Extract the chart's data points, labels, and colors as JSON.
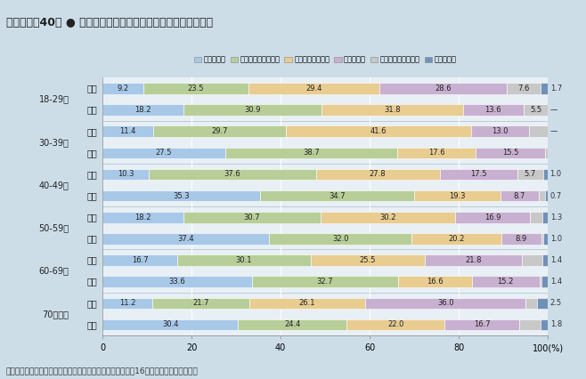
{
  "title": "第１－序－40図 ● 科学技術についてのニュースや話題への関心",
  "footnote": "（備考）内閣府「科学技術と社会に関する世論調査」（平成16年２月調査）より作成。",
  "legend_labels": [
    "関心がある",
    "ある程度関心がある",
    "あまり関心がない",
    "関心がない",
    "どちらともいえない",
    "わからない"
  ],
  "colors": [
    "#a8c8e8",
    "#b8ce98",
    "#e8cc90",
    "#c8b0d0",
    "#c8c8c8",
    "#7090b8"
  ],
  "categories": [
    "18-29歳 女性",
    "18-29歳 男性",
    "30-39歳 女性",
    "30-39歳 男性",
    "40-49歳 女性",
    "40-49歳 男性",
    "50-59歳 女性",
    "50-59歳 男性",
    "60-69歳 女性",
    "60-69歳 男性",
    "70歳以上 女性",
    "70歳以上 男性"
  ],
  "age_labels": [
    "18-29歳",
    "30-39歳",
    "40-49歳",
    "50-59歳",
    "60-69歳",
    "70歳以上"
  ],
  "gender_labels_row": [
    "女性",
    "男性",
    "女性",
    "男性",
    "女性",
    "男性",
    "女性",
    "男性",
    "女性",
    "男性",
    "女性",
    "男性"
  ],
  "data": [
    [
      9.2,
      23.5,
      29.4,
      28.6,
      7.6,
      1.7
    ],
    [
      18.2,
      30.9,
      31.8,
      13.6,
      5.5,
      0.0
    ],
    [
      11.4,
      29.7,
      41.6,
      13.0,
      4.3,
      0.0
    ],
    [
      27.5,
      38.7,
      17.6,
      15.5,
      0.7,
      0.0
    ],
    [
      10.3,
      37.6,
      27.8,
      17.5,
      5.7,
      1.0
    ],
    [
      35.3,
      34.7,
      19.3,
      8.7,
      1.3,
      0.7
    ],
    [
      18.2,
      30.7,
      30.2,
      16.9,
      2.7,
      1.3
    ],
    [
      37.4,
      32.0,
      20.2,
      8.9,
      0.5,
      1.0
    ],
    [
      16.7,
      30.1,
      25.5,
      21.8,
      4.6,
      1.4
    ],
    [
      33.6,
      32.7,
      16.6,
      15.2,
      0.5,
      1.4
    ],
    [
      11.2,
      21.7,
      26.1,
      36.0,
      2.5,
      2.5
    ],
    [
      30.4,
      24.4,
      22.0,
      16.7,
      4.8,
      1.8
    ]
  ],
  "bar_labels": [
    [
      "9.2",
      "23.5",
      "29.4",
      "28.6",
      "7.6",
      "1.7"
    ],
    [
      "18.2",
      "30.9",
      "31.8",
      "13.6",
      "5.5",
      "—"
    ],
    [
      "11.4",
      "29.7",
      "41.6",
      "13.0",
      "4.3",
      "—"
    ],
    [
      "27.5",
      "38.7",
      "17.6",
      "15.5",
      "0.7",
      ""
    ],
    [
      "10.3",
      "37.6",
      "27.8",
      "17.5",
      "5.7",
      "1.0"
    ],
    [
      "35.3",
      "34.7",
      "19.3",
      "8.7",
      "1.3",
      "0.7"
    ],
    [
      "18.2",
      "30.7",
      "30.2",
      "16.9",
      "2.7",
      "1.3"
    ],
    [
      "37.4",
      "32.0",
      "20.2",
      "8.9",
      "0.5",
      "1.0"
    ],
    [
      "16.7",
      "30.1",
      "25.5",
      "21.8",
      "4.6",
      "1.4"
    ],
    [
      "33.6",
      "32.7",
      "16.6",
      "15.2",
      "0.5",
      "1.4"
    ],
    [
      "11.2",
      "21.7",
      "26.1",
      "36.0",
      "2.5",
      "2.5"
    ],
    [
      "30.4",
      "24.4",
      "22.0",
      "16.7",
      "4.8",
      "1.8"
    ]
  ],
  "outside_labels": [
    "1.7",
    "—",
    "—",
    "",
    "1.0",
    "0.7",
    "1.3",
    "1.0",
    "1.4",
    "1.4",
    "2.5",
    "1.8"
  ],
  "background_color": "#ccdde8",
  "plot_bg_color": "#e8f0f5",
  "title_bg_color": "#e0ecf5",
  "legend_bg_color": "#f5f0e0"
}
